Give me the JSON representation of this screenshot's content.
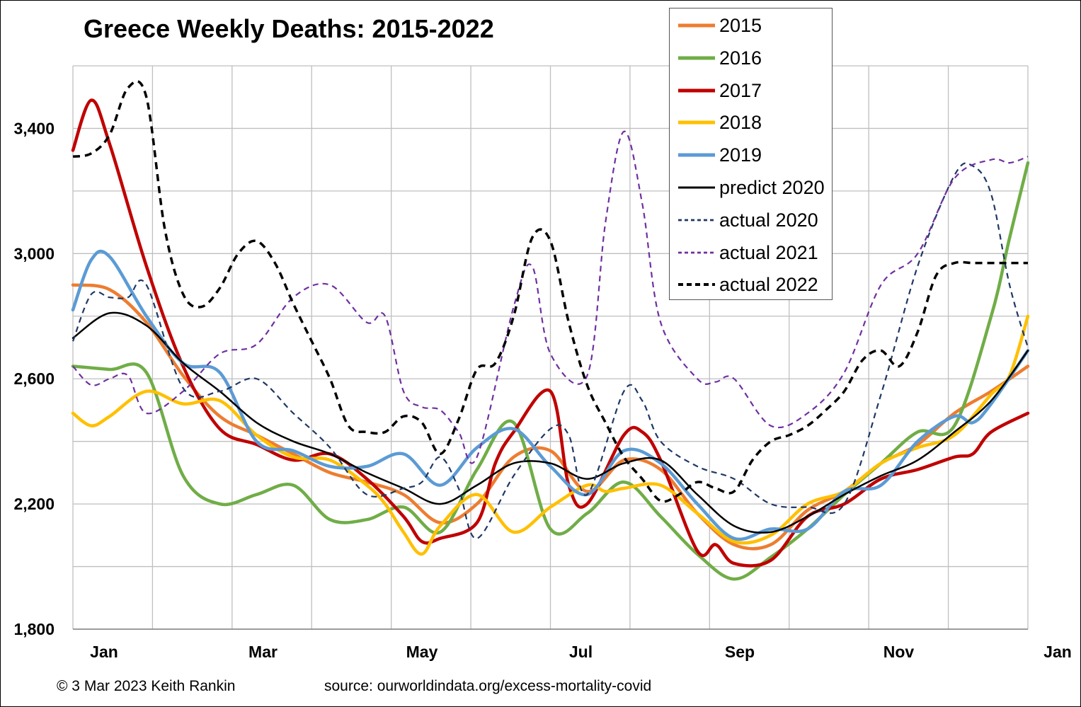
{
  "title": "Greece Weekly Deaths: 2015-2022",
  "footer": {
    "copyright": "© 3 Mar 2023 Keith Rankin",
    "source": "source: ourworldindata.org/excess-mortality-covid"
  },
  "chart_data": {
    "type": "line",
    "title": "Greece Weekly Deaths: 2015-2022",
    "xlabel": "",
    "ylabel": "",
    "x_tick_labels": [
      "Jan",
      "Mar",
      "May",
      "Jul",
      "Sep",
      "Nov",
      "Jan"
    ],
    "y_ticks": [
      1800,
      2200,
      2600,
      3000,
      3400
    ],
    "y_tick_labels": [
      "1,800",
      "2,200",
      "2,600",
      "3,000",
      "3,400"
    ],
    "ylim": [
      1800,
      3600
    ],
    "xlim": [
      0,
      52
    ],
    "grid": true,
    "legend_position": "top-right",
    "series": [
      {
        "name": "2015",
        "color": "#ED7D31",
        "width": 4.5,
        "dash": "solid",
        "x": [
          0,
          2,
          4,
          6,
          8,
          10,
          12,
          14,
          16,
          18,
          20,
          22,
          24,
          26,
          28,
          30,
          32,
          34,
          36,
          38,
          40,
          42,
          44,
          46,
          48,
          50,
          52
        ],
        "y": [
          2900,
          2885,
          2780,
          2610,
          2480,
          2420,
          2360,
          2300,
          2270,
          2230,
          2140,
          2200,
          2350,
          2370,
          2240,
          2340,
          2310,
          2170,
          2070,
          2070,
          2180,
          2240,
          2330,
          2390,
          2490,
          2560,
          2640
        ]
      },
      {
        "name": "2016",
        "color": "#70AD47",
        "width": 4.5,
        "dash": "solid",
        "x": [
          0,
          2,
          4,
          6,
          8,
          10,
          12,
          14,
          16,
          18,
          20,
          22,
          24,
          26,
          28,
          30,
          32,
          34,
          36,
          38,
          40,
          42,
          44,
          46,
          48,
          50,
          51,
          52
        ],
        "y": [
          2640,
          2630,
          2620,
          2290,
          2200,
          2230,
          2260,
          2150,
          2150,
          2190,
          2110,
          2310,
          2460,
          2120,
          2170,
          2270,
          2160,
          2040,
          1960,
          2030,
          2120,
          2230,
          2330,
          2430,
          2450,
          2800,
          3050,
          3290
        ]
      },
      {
        "name": "2017",
        "color": "#C00000",
        "width": 4.5,
        "dash": "solid",
        "x": [
          0,
          1,
          2,
          4,
          6,
          8,
          10,
          12,
          14,
          16,
          18,
          19,
          20,
          22,
          23,
          24,
          26,
          27,
          28,
          30,
          31,
          32,
          34,
          35,
          36,
          38,
          40,
          42,
          44,
          46,
          48,
          49,
          50,
          52
        ],
        "y": [
          3330,
          3490,
          3350,
          2960,
          2640,
          2440,
          2390,
          2340,
          2360,
          2280,
          2160,
          2080,
          2090,
          2140,
          2330,
          2430,
          2560,
          2260,
          2200,
          2420,
          2430,
          2340,
          2050,
          2070,
          2010,
          2020,
          2160,
          2200,
          2280,
          2310,
          2350,
          2360,
          2430,
          2490
        ]
      },
      {
        "name": "2018",
        "color": "#FFC000",
        "width": 4.5,
        "dash": "solid",
        "x": [
          0,
          1,
          2,
          4,
          6,
          8,
          10,
          12,
          14,
          16,
          17,
          18,
          19,
          20,
          22,
          24,
          26,
          28,
          29,
          30,
          32,
          34,
          36,
          38,
          40,
          42,
          44,
          46,
          48,
          50,
          51,
          52
        ],
        "y": [
          2490,
          2450,
          2480,
          2560,
          2520,
          2530,
          2420,
          2350,
          2340,
          2260,
          2200,
          2110,
          2040,
          2130,
          2230,
          2110,
          2190,
          2260,
          2240,
          2250,
          2260,
          2170,
          2080,
          2100,
          2200,
          2240,
          2330,
          2380,
          2420,
          2550,
          2610,
          2800
        ]
      },
      {
        "name": "2019",
        "color": "#5B9BD5",
        "width": 4.5,
        "dash": "solid",
        "x": [
          0,
          1,
          2,
          4,
          6,
          8,
          10,
          12,
          14,
          16,
          18,
          20,
          22,
          24,
          26,
          28,
          30,
          32,
          34,
          36,
          38,
          40,
          42,
          44,
          46,
          48,
          49,
          50,
          52
        ],
        "y": [
          2820,
          2980,
          2990,
          2800,
          2650,
          2620,
          2400,
          2370,
          2320,
          2320,
          2360,
          2260,
          2380,
          2440,
          2320,
          2230,
          2370,
          2330,
          2200,
          2090,
          2120,
          2120,
          2240,
          2260,
          2400,
          2480,
          2460,
          2520,
          2690
        ]
      },
      {
        "name": "predict 2020",
        "color": "#000000",
        "width": 2.5,
        "dash": "solid",
        "x": [
          0,
          2,
          4,
          6,
          8,
          10,
          12,
          14,
          16,
          18,
          20,
          22,
          24,
          26,
          28,
          30,
          32,
          34,
          36,
          38,
          40,
          42,
          44,
          46,
          48,
          50,
          52
        ],
        "y": [
          2730,
          2810,
          2770,
          2650,
          2560,
          2460,
          2400,
          2360,
          2300,
          2250,
          2200,
          2260,
          2330,
          2330,
          2280,
          2330,
          2340,
          2230,
          2130,
          2110,
          2160,
          2230,
          2290,
          2340,
          2430,
          2530,
          2690
        ]
      },
      {
        "name": "actual 2020",
        "color": "#1F3864",
        "width": 2.2,
        "dash": "8,6",
        "x": [
          0,
          1,
          2,
          3,
          4,
          6,
          8,
          10,
          12,
          14,
          16,
          18,
          19,
          20,
          21,
          22,
          24,
          26,
          27,
          28,
          30,
          31,
          32,
          34,
          36,
          38,
          40,
          42,
          44,
          46,
          48,
          49,
          50,
          51,
          52
        ],
        "y": [
          2720,
          2870,
          2860,
          2860,
          2900,
          2570,
          2560,
          2600,
          2490,
          2380,
          2230,
          2250,
          2270,
          2350,
          2250,
          2090,
          2290,
          2440,
          2420,
          2230,
          2560,
          2530,
          2400,
          2320,
          2280,
          2200,
          2190,
          2200,
          2550,
          2960,
          3250,
          3280,
          3190,
          2900,
          2700
        ]
      },
      {
        "name": "actual 2021",
        "color": "#7030A0",
        "width": 2.2,
        "dash": "8,6",
        "x": [
          0,
          1,
          2,
          3,
          4,
          6,
          8,
          10,
          12,
          14,
          16,
          17,
          18,
          19,
          20,
          21,
          22,
          24,
          25,
          26,
          28,
          29,
          30,
          31,
          32,
          34,
          35,
          36,
          38,
          40,
          42,
          44,
          46,
          48,
          50,
          51,
          52
        ],
        "y": [
          2640,
          2580,
          2600,
          2610,
          2490,
          2560,
          2680,
          2710,
          2860,
          2900,
          2780,
          2800,
          2560,
          2510,
          2500,
          2430,
          2350,
          2830,
          2960,
          2680,
          2610,
          3100,
          3390,
          3160,
          2780,
          2600,
          2590,
          2600,
          2450,
          2490,
          2620,
          2900,
          3000,
          3240,
          3300,
          3290,
          3310
        ]
      },
      {
        "name": "actual 2022",
        "color": "#000000",
        "width": 3.5,
        "dash": "10,7",
        "x": [
          0,
          1,
          2,
          3,
          4,
          5,
          6,
          7,
          8,
          9,
          10,
          11,
          12,
          13,
          14,
          15,
          16,
          17,
          18,
          19,
          20,
          21,
          22,
          23,
          24,
          25,
          26,
          27,
          28,
          29,
          30,
          31,
          32,
          33,
          34,
          35,
          36,
          37,
          38,
          39,
          40,
          41,
          42,
          43,
          44,
          45,
          46,
          47,
          48,
          49,
          50,
          51,
          52
        ],
        "y": [
          3310,
          3320,
          3380,
          3530,
          3500,
          3080,
          2870,
          2830,
          2890,
          3000,
          3040,
          2970,
          2840,
          2720,
          2600,
          2450,
          2430,
          2430,
          2480,
          2460,
          2360,
          2470,
          2630,
          2650,
          2800,
          3050,
          3040,
          2780,
          2580,
          2460,
          2350,
          2280,
          2210,
          2230,
          2270,
          2250,
          2240,
          2340,
          2400,
          2420,
          2450,
          2500,
          2560,
          2660,
          2690,
          2640,
          2750,
          2930,
          2970,
          2970,
          2970,
          2970,
          2970
        ]
      }
    ]
  }
}
